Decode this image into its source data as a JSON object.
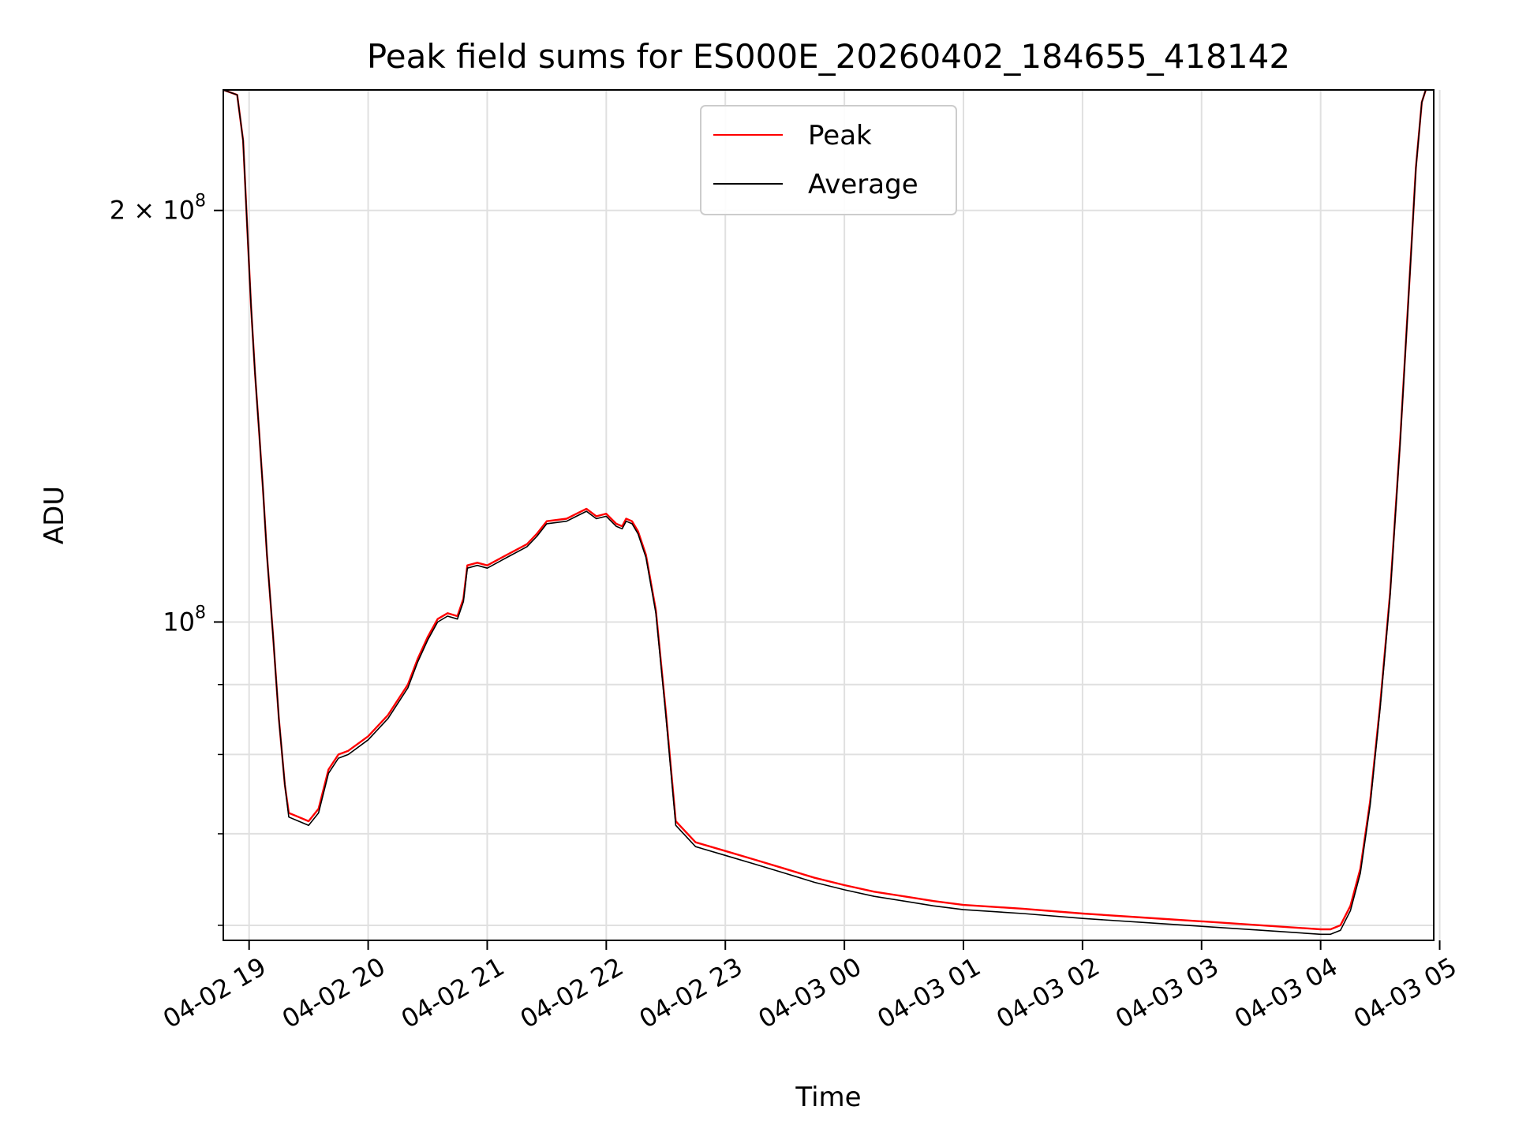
{
  "chart_data": {
    "type": "line",
    "title": "Peak field sums for ES000E_20260402_184655_418142",
    "xlabel": "Time",
    "ylabel": "ADU",
    "y_scale": "log",
    "grid": true,
    "legend_placement": "upper center",
    "xlim": [
      "2026-04-02 18:47",
      "2026-04-03 04:57"
    ],
    "ylim": [
      58500000,
      245000000
    ],
    "x_ticks": [
      {
        "label": "04-02 19",
        "time": "2026-04-02 19:00"
      },
      {
        "label": "04-02 20",
        "time": "2026-04-02 20:00"
      },
      {
        "label": "04-02 21",
        "time": "2026-04-02 21:00"
      },
      {
        "label": "04-02 22",
        "time": "2026-04-02 22:00"
      },
      {
        "label": "04-02 23",
        "time": "2026-04-02 23:00"
      },
      {
        "label": "04-03 00",
        "time": "2026-04-03 00:00"
      },
      {
        "label": "04-03 01",
        "time": "2026-04-03 01:00"
      },
      {
        "label": "04-03 02",
        "time": "2026-04-03 02:00"
      },
      {
        "label": "04-03 03",
        "time": "2026-04-03 03:00"
      },
      {
        "label": "04-03 04",
        "time": "2026-04-03 04:00"
      },
      {
        "label": "04-03 05",
        "time": "2026-04-03 05:00"
      }
    ],
    "y_ticks": [
      {
        "mantissa": "2 × 10",
        "exponent": "8",
        "value": 200000000
      },
      {
        "mantissa": "10",
        "exponent": "8",
        "value": 100000000
      }
    ],
    "y_minor_ticks": [
      60000000,
      70000000,
      80000000,
      90000000
    ],
    "series": [
      {
        "name": "Peak",
        "color": "#ff0000",
        "x": [
          "2026-04-02 18:47",
          "2026-04-02 18:54",
          "2026-04-02 18:57",
          "2026-04-02 18:59",
          "2026-04-02 19:01",
          "2026-04-02 19:03",
          "2026-04-02 19:05",
          "2026-04-02 19:07",
          "2026-04-02 19:09",
          "2026-04-02 19:12",
          "2026-04-02 19:15",
          "2026-04-02 19:18",
          "2026-04-02 19:20",
          "2026-04-02 19:25",
          "2026-04-02 19:30",
          "2026-04-02 19:35",
          "2026-04-02 19:40",
          "2026-04-02 19:45",
          "2026-04-02 19:50",
          "2026-04-02 20:00",
          "2026-04-02 20:10",
          "2026-04-02 20:20",
          "2026-04-02 20:25",
          "2026-04-02 20:30",
          "2026-04-02 20:35",
          "2026-04-02 20:40",
          "2026-04-02 20:45",
          "2026-04-02 20:48",
          "2026-04-02 20:50",
          "2026-04-02 20:55",
          "2026-04-02 21:00",
          "2026-04-02 21:10",
          "2026-04-02 21:20",
          "2026-04-02 21:25",
          "2026-04-02 21:30",
          "2026-04-02 21:40",
          "2026-04-02 21:45",
          "2026-04-02 21:50",
          "2026-04-02 21:55",
          "2026-04-02 22:00",
          "2026-04-02 22:05",
          "2026-04-02 22:08",
          "2026-04-02 22:10",
          "2026-04-02 22:13",
          "2026-04-02 22:16",
          "2026-04-02 22:20",
          "2026-04-02 22:25",
          "2026-04-02 22:30",
          "2026-04-02 22:35",
          "2026-04-02 22:45",
          "2026-04-02 23:00",
          "2026-04-02 23:15",
          "2026-04-02 23:30",
          "2026-04-02 23:45",
          "2026-04-03 00:00",
          "2026-04-03 00:15",
          "2026-04-03 00:30",
          "2026-04-03 00:45",
          "2026-04-03 01:00",
          "2026-04-03 01:30",
          "2026-04-03 02:00",
          "2026-04-03 02:30",
          "2026-04-03 03:00",
          "2026-04-03 03:30",
          "2026-04-03 04:00",
          "2026-04-03 04:05",
          "2026-04-03 04:10",
          "2026-04-03 04:15",
          "2026-04-03 04:20",
          "2026-04-03 04:25",
          "2026-04-03 04:30",
          "2026-04-03 04:35",
          "2026-04-03 04:40",
          "2026-04-03 04:45",
          "2026-04-03 04:48",
          "2026-04-03 04:51",
          "2026-04-03 04:53"
        ],
        "y": [
          245000000,
          243000000,
          225000000,
          195000000,
          170000000,
          152000000,
          138000000,
          125000000,
          112000000,
          98000000,
          85000000,
          76000000,
          72500000,
          72000000,
          71500000,
          73000000,
          78000000,
          80000000,
          80500000,
          82500000,
          85500000,
          90000000,
          94000000,
          97500000,
          100500000,
          101500000,
          101000000,
          104000000,
          110000000,
          110500000,
          110000000,
          112000000,
          114000000,
          116000000,
          118500000,
          119000000,
          120000000,
          121000000,
          119500000,
          120000000,
          118000000,
          117500000,
          119000000,
          118500000,
          116500000,
          112000000,
          102000000,
          86000000,
          71500000,
          69000000,
          68000000,
          67000000,
          66000000,
          65000000,
          64200000,
          63500000,
          63000000,
          62500000,
          62100000,
          61700000,
          61200000,
          60800000,
          60400000,
          60000000,
          59600000,
          59600000,
          60000000,
          62000000,
          66000000,
          74000000,
          87000000,
          105000000,
          135000000,
          180000000,
          215000000,
          240000000,
          245000000
        ]
      },
      {
        "name": "Average",
        "color": "#000000",
        "x": [
          "2026-04-02 18:47",
          "2026-04-02 18:54",
          "2026-04-02 18:57",
          "2026-04-02 18:59",
          "2026-04-02 19:01",
          "2026-04-02 19:03",
          "2026-04-02 19:05",
          "2026-04-02 19:07",
          "2026-04-02 19:09",
          "2026-04-02 19:12",
          "2026-04-02 19:15",
          "2026-04-02 19:18",
          "2026-04-02 19:20",
          "2026-04-02 19:25",
          "2026-04-02 19:30",
          "2026-04-02 19:35",
          "2026-04-02 19:40",
          "2026-04-02 19:45",
          "2026-04-02 19:50",
          "2026-04-02 20:00",
          "2026-04-02 20:10",
          "2026-04-02 20:20",
          "2026-04-02 20:25",
          "2026-04-02 20:30",
          "2026-04-02 20:35",
          "2026-04-02 20:40",
          "2026-04-02 20:45",
          "2026-04-02 20:48",
          "2026-04-02 20:50",
          "2026-04-02 20:55",
          "2026-04-02 21:00",
          "2026-04-02 21:10",
          "2026-04-02 21:20",
          "2026-04-02 21:25",
          "2026-04-02 21:30",
          "2026-04-02 21:40",
          "2026-04-02 21:45",
          "2026-04-02 21:50",
          "2026-04-02 21:55",
          "2026-04-02 22:00",
          "2026-04-02 22:05",
          "2026-04-02 22:08",
          "2026-04-02 22:10",
          "2026-04-02 22:13",
          "2026-04-02 22:16",
          "2026-04-02 22:20",
          "2026-04-02 22:25",
          "2026-04-02 22:30",
          "2026-04-02 22:35",
          "2026-04-02 22:45",
          "2026-04-02 23:00",
          "2026-04-02 23:15",
          "2026-04-02 23:30",
          "2026-04-02 23:45",
          "2026-04-03 00:00",
          "2026-04-03 00:15",
          "2026-04-03 00:30",
          "2026-04-03 00:45",
          "2026-04-03 01:00",
          "2026-04-03 01:30",
          "2026-04-03 02:00",
          "2026-04-03 02:30",
          "2026-04-03 03:00",
          "2026-04-03 03:30",
          "2026-04-03 04:00",
          "2026-04-03 04:05",
          "2026-04-03 04:10",
          "2026-04-03 04:15",
          "2026-04-03 04:20",
          "2026-04-03 04:25",
          "2026-04-03 04:30",
          "2026-04-03 04:35",
          "2026-04-03 04:40",
          "2026-04-03 04:45",
          "2026-04-03 04:48",
          "2026-04-03 04:51",
          "2026-04-03 04:53"
        ],
        "y": [
          245000000,
          243000000,
          225000000,
          195000000,
          170000000,
          152000000,
          138000000,
          125000000,
          112000000,
          98000000,
          85000000,
          76000000,
          72000000,
          71500000,
          71000000,
          72500000,
          77500000,
          79500000,
          80000000,
          82000000,
          85000000,
          89500000,
          93500000,
          97000000,
          100000000,
          101000000,
          100500000,
          103500000,
          109500000,
          110000000,
          109500000,
          111500000,
          113500000,
          115500000,
          118000000,
          118500000,
          119500000,
          120500000,
          119000000,
          119500000,
          117500000,
          117000000,
          118500000,
          118000000,
          116000000,
          111500000,
          101500000,
          85500000,
          71000000,
          68500000,
          67500000,
          66500000,
          65500000,
          64500000,
          63700000,
          63000000,
          62500000,
          62000000,
          61600000,
          61200000,
          60700000,
          60300000,
          59900000,
          59500000,
          59100000,
          59100000,
          59500000,
          61500000,
          65500000,
          73500000,
          86500000,
          104500000,
          134500000,
          179500000,
          214500000,
          240000000,
          245000000
        ]
      }
    ]
  }
}
